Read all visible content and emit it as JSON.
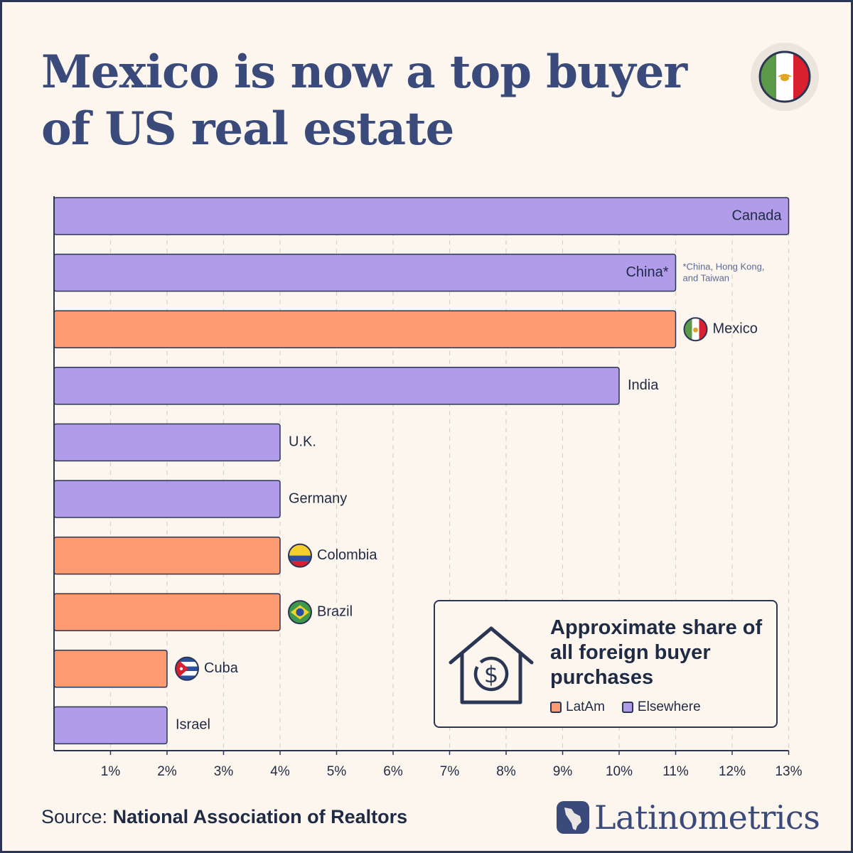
{
  "title_line1": "Mexico is now a top buyer",
  "title_line2": "of US real estate",
  "chart_data": {
    "type": "bar",
    "orientation": "horizontal",
    "categories": [
      "Canada",
      "China*",
      "Mexico",
      "India",
      "U.K.",
      "Germany",
      "Colombia",
      "Brazil",
      "Cuba",
      "Israel"
    ],
    "values": [
      13,
      11,
      11,
      10,
      4,
      4,
      4,
      4,
      2,
      2
    ],
    "groups": [
      "Elsewhere",
      "Elsewhere",
      "LatAm",
      "Elsewhere",
      "Elsewhere",
      "Elsewhere",
      "LatAm",
      "LatAm",
      "LatAm",
      "Elsewhere"
    ],
    "xlim": [
      0,
      13
    ],
    "x_ticks": [
      "1%",
      "2%",
      "3%",
      "4%",
      "5%",
      "6%",
      "7%",
      "8%",
      "9%",
      "10%",
      "11%",
      "12%",
      "13%"
    ],
    "grid": "vertical dashed",
    "footnote": "*China, Hong Kong, and Taiwan",
    "legend": {
      "title": "Approximate share of all foreign buyer purchases",
      "entries": [
        "LatAm",
        "Elsewhere"
      ],
      "placement": "bottom-right"
    },
    "colors": {
      "LatAm": "#ff9b73",
      "Elsewhere": "#b19cea"
    }
  },
  "source_label": "Source:",
  "source_name": "National Association of Realtors",
  "brand": "Latinometrics",
  "icons": {
    "header": "mexico-flag-icon",
    "legend": "house-dollar-icon",
    "flags": {
      "Mexico": "mexico-flag-icon",
      "Colombia": "colombia-flag-icon",
      "Brazil": "brazil-flag-icon",
      "Cuba": "cuba-flag-icon"
    },
    "brand": "latin-america-map-icon"
  }
}
